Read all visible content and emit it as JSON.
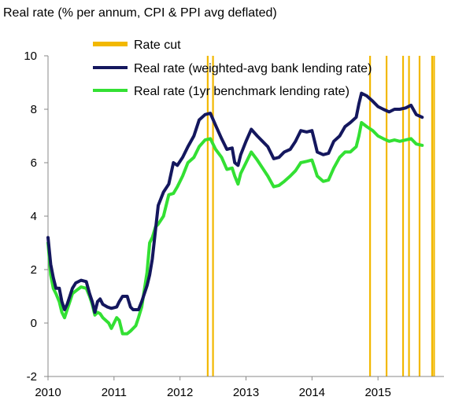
{
  "chart_data": {
    "type": "line",
    "title": "Real rate (% per annum, CPI & PPI avg deflated)",
    "xlabel": "",
    "ylabel": "",
    "xlim": [
      2010.0,
      2016.0
    ],
    "ylim": [
      -2,
      10
    ],
    "yticks": [
      -2,
      0,
      2,
      4,
      6,
      8,
      10
    ],
    "xticks": [
      {
        "value": 2010,
        "label": "2010"
      },
      {
        "value": 2011,
        "label": "2011"
      },
      {
        "value": 2012,
        "label": "2012"
      },
      {
        "value": 2013,
        "label": "2013"
      },
      {
        "value": 2014,
        "label": "2014"
      },
      {
        "value": 2015,
        "label": "2015"
      }
    ],
    "grid": false,
    "legend_position": "top-center",
    "rate_cuts": {
      "name": "Rate cut",
      "color": "#F2B800",
      "dates": [
        2012.42,
        2012.5,
        2014.88,
        2015.13,
        2015.38,
        2015.47,
        2015.63,
        2015.82,
        2015.85
      ]
    },
    "series": [
      {
        "name": "Real rate (weighted-avg bank lending rate)",
        "color": "#14175E",
        "points": [
          [
            2010.0,
            3.2
          ],
          [
            2010.04,
            2.2
          ],
          [
            2010.08,
            1.7
          ],
          [
            2010.12,
            1.3
          ],
          [
            2010.17,
            1.3
          ],
          [
            2010.21,
            0.8
          ],
          [
            2010.25,
            0.5
          ],
          [
            2010.29,
            0.7
          ],
          [
            2010.33,
            1.0
          ],
          [
            2010.37,
            1.3
          ],
          [
            2010.42,
            1.5
          ],
          [
            2010.5,
            1.6
          ],
          [
            2010.58,
            1.55
          ],
          [
            2010.63,
            1.1
          ],
          [
            2010.67,
            0.8
          ],
          [
            2010.71,
            0.4
          ],
          [
            2010.75,
            0.8
          ],
          [
            2010.79,
            0.9
          ],
          [
            2010.83,
            0.7
          ],
          [
            2010.9,
            0.6
          ],
          [
            2010.96,
            0.55
          ],
          [
            2011.04,
            0.6
          ],
          [
            2011.08,
            0.8
          ],
          [
            2011.13,
            1.0
          ],
          [
            2011.2,
            1.0
          ],
          [
            2011.25,
            0.6
          ],
          [
            2011.29,
            0.5
          ],
          [
            2011.37,
            0.5
          ],
          [
            2011.42,
            0.8
          ],
          [
            2011.5,
            1.4
          ],
          [
            2011.54,
            1.8
          ],
          [
            2011.58,
            2.4
          ],
          [
            2011.63,
            3.5
          ],
          [
            2011.67,
            4.4
          ],
          [
            2011.75,
            4.9
          ],
          [
            2011.83,
            5.2
          ],
          [
            2011.9,
            6.0
          ],
          [
            2011.96,
            5.9
          ],
          [
            2012.04,
            6.2
          ],
          [
            2012.12,
            6.6
          ],
          [
            2012.21,
            7.0
          ],
          [
            2012.29,
            7.6
          ],
          [
            2012.38,
            7.8
          ],
          [
            2012.46,
            7.85
          ],
          [
            2012.54,
            7.4
          ],
          [
            2012.63,
            6.9
          ],
          [
            2012.71,
            6.5
          ],
          [
            2012.79,
            6.55
          ],
          [
            2012.83,
            6.0
          ],
          [
            2012.88,
            5.9
          ],
          [
            2012.92,
            6.3
          ],
          [
            2013.0,
            6.8
          ],
          [
            2013.08,
            7.25
          ],
          [
            2013.17,
            7.0
          ],
          [
            2013.25,
            6.8
          ],
          [
            2013.33,
            6.6
          ],
          [
            2013.42,
            6.15
          ],
          [
            2013.5,
            6.2
          ],
          [
            2013.58,
            6.4
          ],
          [
            2013.67,
            6.5
          ],
          [
            2013.75,
            6.8
          ],
          [
            2013.83,
            7.2
          ],
          [
            2013.92,
            7.15
          ],
          [
            2014.0,
            7.2
          ],
          [
            2014.04,
            6.8
          ],
          [
            2014.08,
            6.4
          ],
          [
            2014.17,
            6.3
          ],
          [
            2014.25,
            6.35
          ],
          [
            2014.33,
            6.8
          ],
          [
            2014.42,
            7.0
          ],
          [
            2014.5,
            7.35
          ],
          [
            2014.58,
            7.5
          ],
          [
            2014.67,
            7.7
          ],
          [
            2014.71,
            8.2
          ],
          [
            2014.75,
            8.6
          ],
          [
            2014.83,
            8.5
          ],
          [
            2014.92,
            8.3
          ],
          [
            2015.0,
            8.1
          ],
          [
            2015.08,
            8.0
          ],
          [
            2015.17,
            7.9
          ],
          [
            2015.25,
            8.0
          ],
          [
            2015.33,
            8.0
          ],
          [
            2015.42,
            8.05
          ],
          [
            2015.5,
            8.15
          ],
          [
            2015.58,
            7.8
          ],
          [
            2015.67,
            7.7
          ]
        ]
      },
      {
        "name": "Real rate (1yr benchmark lending rate)",
        "color": "#33E033",
        "points": [
          [
            2010.0,
            3.0
          ],
          [
            2010.04,
            1.8
          ],
          [
            2010.08,
            1.3
          ],
          [
            2010.12,
            1.1
          ],
          [
            2010.17,
            0.8
          ],
          [
            2010.21,
            0.4
          ],
          [
            2010.25,
            0.2
          ],
          [
            2010.29,
            0.5
          ],
          [
            2010.33,
            0.8
          ],
          [
            2010.37,
            1.1
          ],
          [
            2010.42,
            1.2
          ],
          [
            2010.5,
            1.35
          ],
          [
            2010.58,
            1.3
          ],
          [
            2010.63,
            1.0
          ],
          [
            2010.67,
            0.7
          ],
          [
            2010.71,
            0.3
          ],
          [
            2010.75,
            0.4
          ],
          [
            2010.79,
            0.35
          ],
          [
            2010.83,
            0.2
          ],
          [
            2010.92,
            0.0
          ],
          [
            2010.96,
            -0.2
          ],
          [
            2011.04,
            0.2
          ],
          [
            2011.08,
            0.1
          ],
          [
            2011.13,
            -0.4
          ],
          [
            2011.2,
            -0.4
          ],
          [
            2011.25,
            -0.3
          ],
          [
            2011.33,
            -0.1
          ],
          [
            2011.37,
            0.2
          ],
          [
            2011.42,
            0.6
          ],
          [
            2011.5,
            1.9
          ],
          [
            2011.54,
            3.0
          ],
          [
            2011.58,
            3.2
          ],
          [
            2011.63,
            3.6
          ],
          [
            2011.67,
            3.7
          ],
          [
            2011.75,
            4.0
          ],
          [
            2011.83,
            4.8
          ],
          [
            2011.9,
            4.85
          ],
          [
            2011.96,
            5.1
          ],
          [
            2012.04,
            5.5
          ],
          [
            2012.12,
            6.0
          ],
          [
            2012.21,
            6.2
          ],
          [
            2012.29,
            6.6
          ],
          [
            2012.38,
            6.85
          ],
          [
            2012.46,
            6.9
          ],
          [
            2012.54,
            6.5
          ],
          [
            2012.63,
            6.2
          ],
          [
            2012.71,
            5.75
          ],
          [
            2012.79,
            5.8
          ],
          [
            2012.83,
            5.5
          ],
          [
            2012.88,
            5.2
          ],
          [
            2012.92,
            5.6
          ],
          [
            2013.0,
            6.0
          ],
          [
            2013.08,
            6.4
          ],
          [
            2013.17,
            6.1
          ],
          [
            2013.25,
            5.8
          ],
          [
            2013.33,
            5.5
          ],
          [
            2013.42,
            5.1
          ],
          [
            2013.5,
            5.15
          ],
          [
            2013.58,
            5.3
          ],
          [
            2013.67,
            5.5
          ],
          [
            2013.75,
            5.7
          ],
          [
            2013.83,
            6.0
          ],
          [
            2013.92,
            6.05
          ],
          [
            2014.0,
            6.1
          ],
          [
            2014.04,
            5.8
          ],
          [
            2014.08,
            5.5
          ],
          [
            2014.17,
            5.3
          ],
          [
            2014.25,
            5.35
          ],
          [
            2014.33,
            5.8
          ],
          [
            2014.42,
            6.2
          ],
          [
            2014.5,
            6.4
          ],
          [
            2014.58,
            6.4
          ],
          [
            2014.67,
            6.6
          ],
          [
            2014.71,
            7.0
          ],
          [
            2014.75,
            7.5
          ],
          [
            2014.83,
            7.35
          ],
          [
            2014.92,
            7.2
          ],
          [
            2015.0,
            7.0
          ],
          [
            2015.08,
            6.9
          ],
          [
            2015.17,
            6.8
          ],
          [
            2015.25,
            6.85
          ],
          [
            2015.33,
            6.8
          ],
          [
            2015.42,
            6.85
          ],
          [
            2015.5,
            6.9
          ],
          [
            2015.58,
            6.7
          ],
          [
            2015.67,
            6.65
          ]
        ]
      }
    ]
  }
}
